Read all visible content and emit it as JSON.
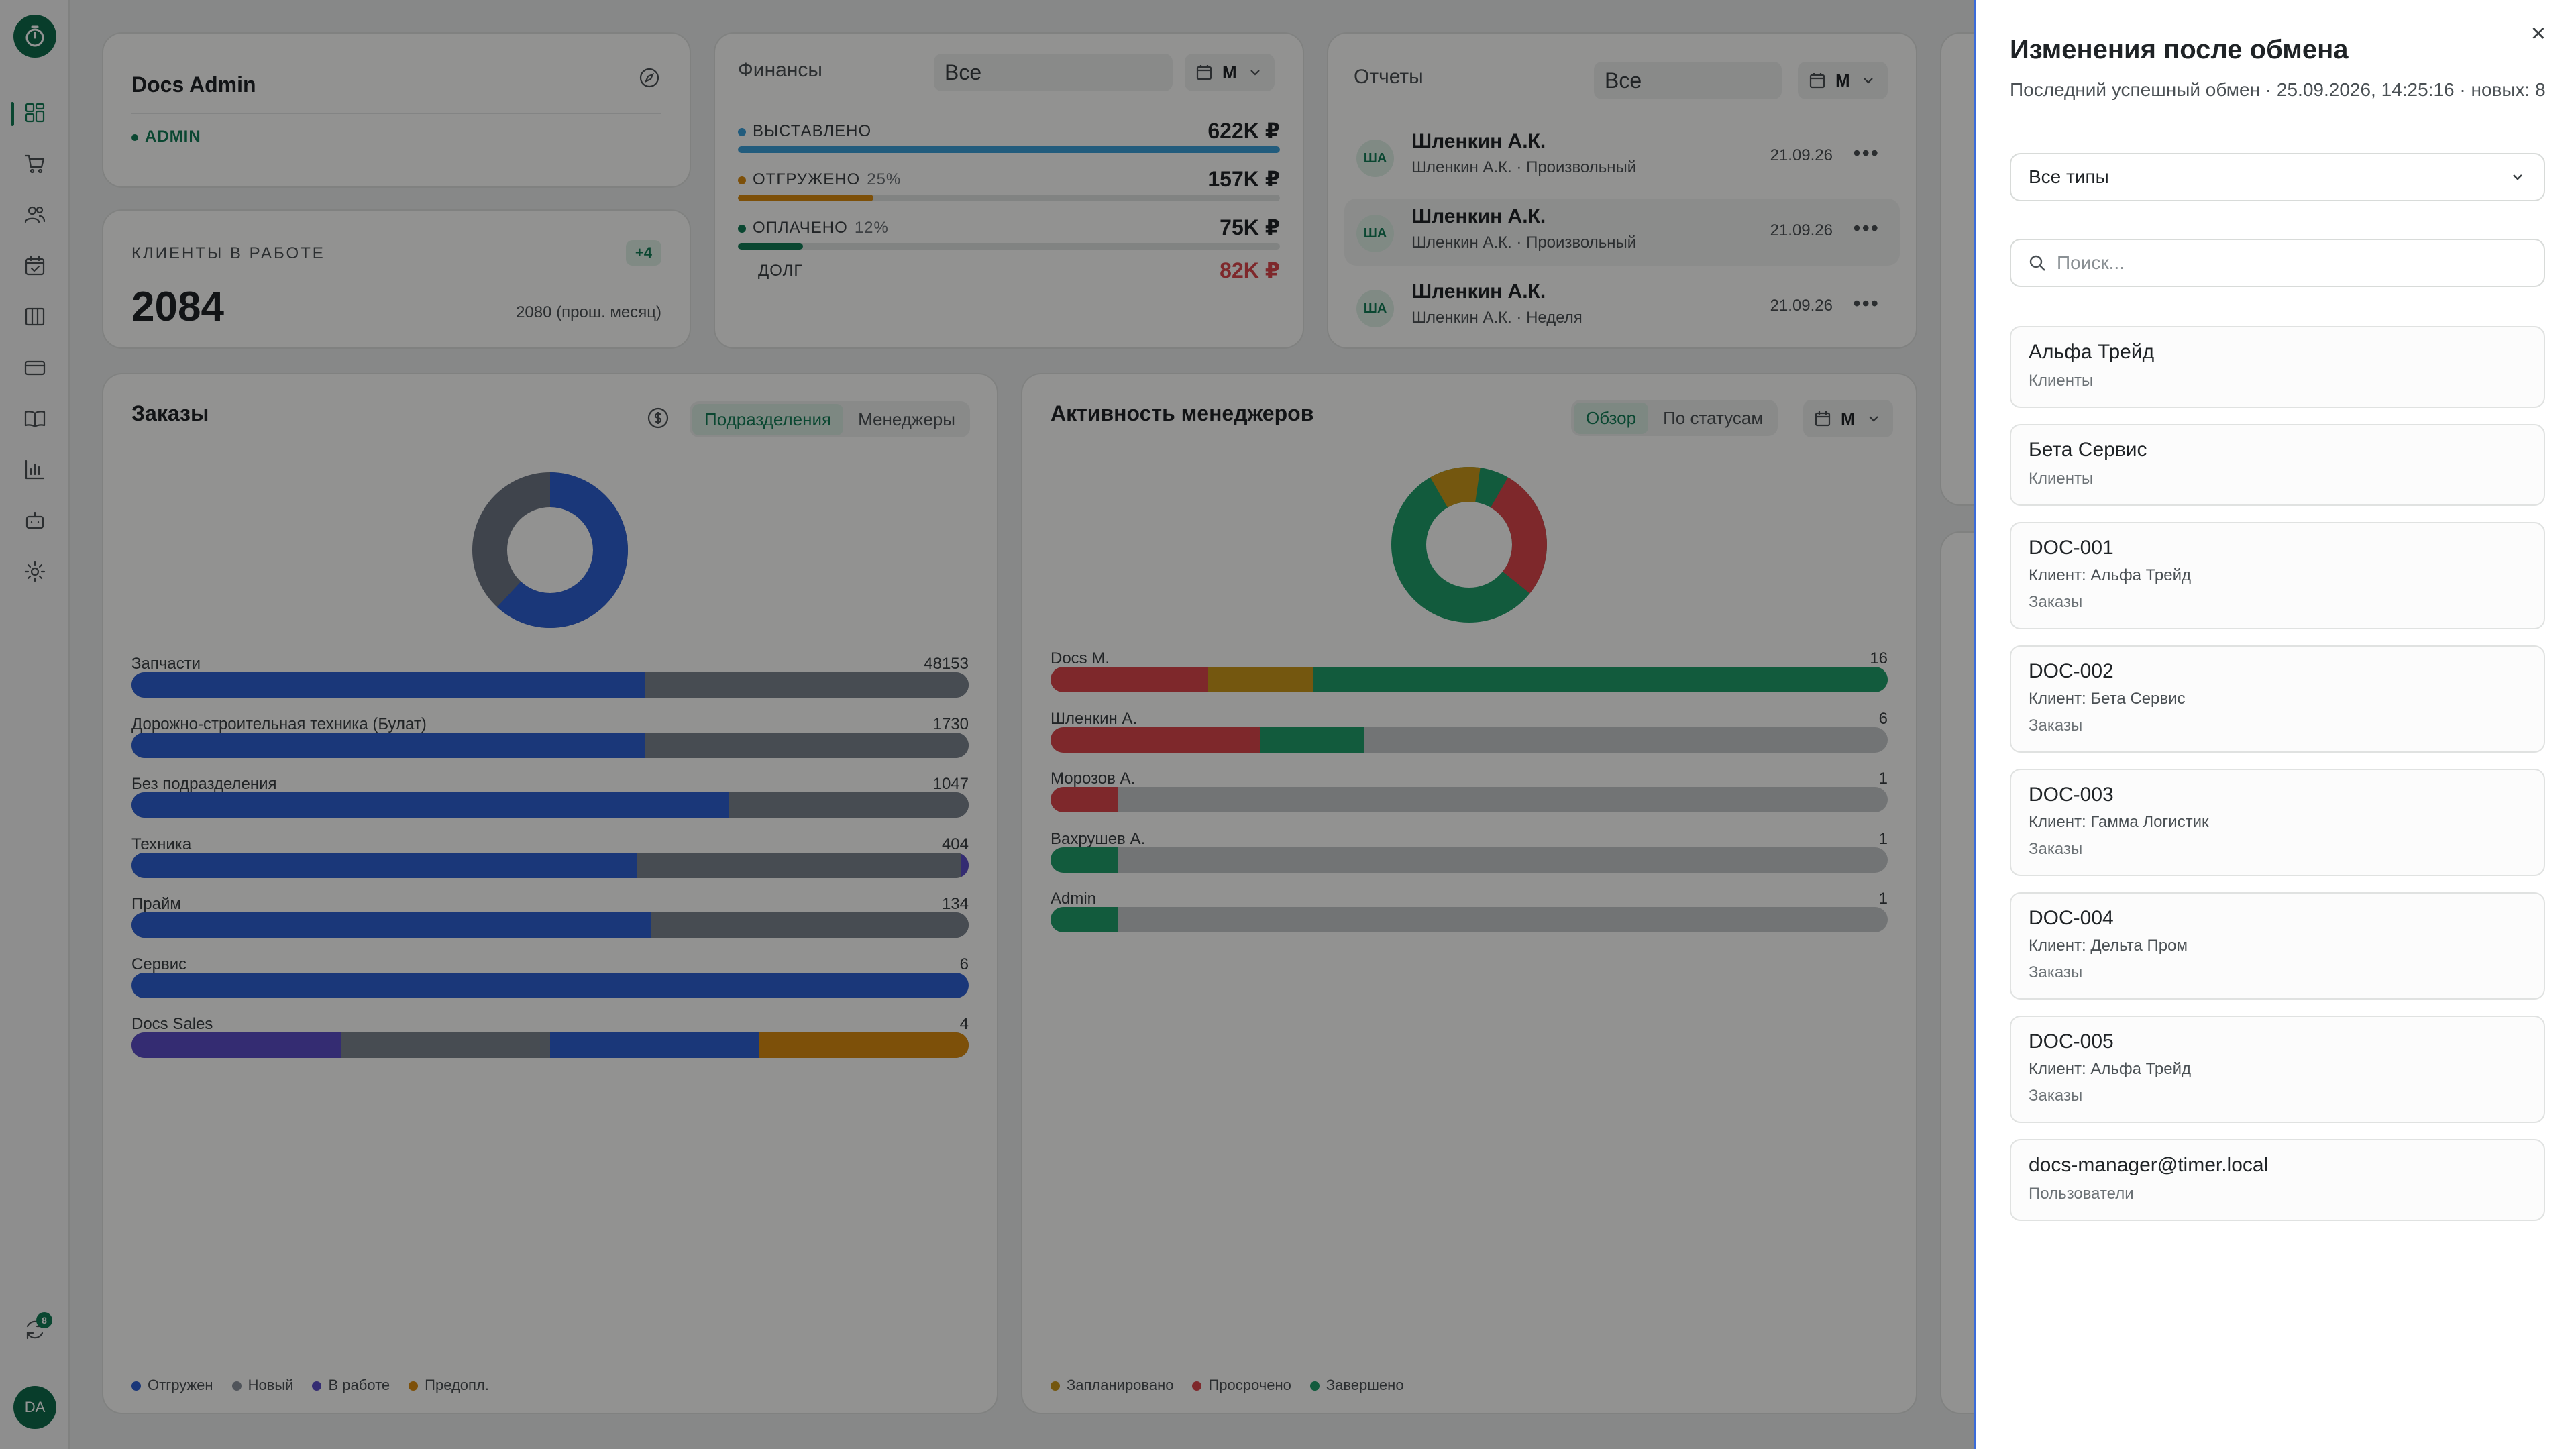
{
  "sidebar": {
    "nav": [
      "dashboard",
      "orders",
      "clients",
      "calendar",
      "boards",
      "payments",
      "knowledge",
      "analytics",
      "bots",
      "settings"
    ],
    "sync_badge": "8",
    "avatar": "DA"
  },
  "admin_card": {
    "title": "Docs Admin",
    "role": "ADMIN"
  },
  "clients_card": {
    "label": "КЛИЕНТЫ В РАБОТЕ",
    "badge": "+4",
    "value": "2084",
    "prev": "2080 (прош. месяц)"
  },
  "finance": {
    "title": "Финансы",
    "filter": "Все",
    "period": "М",
    "rows": [
      {
        "name": "ВЫСТАВЛЕНО",
        "pct": "",
        "value": "622K ₽",
        "fill": 1.0,
        "color": "#3b9fd8"
      },
      {
        "name": "ОТГРУЖЕНО",
        "pct": "25%",
        "value": "157K ₽",
        "fill": 0.25,
        "color": "#d88a10"
      },
      {
        "name": "ОПЛАЧЕНО",
        "pct": "12%",
        "value": "75K ₽",
        "fill": 0.12,
        "color": "#127a55"
      }
    ],
    "debt_label": "ДОЛГ",
    "debt_value": "82K ₽"
  },
  "reports": {
    "title": "Отчеты",
    "filter": "Все",
    "period": "М",
    "rows": [
      {
        "avatar": "ША",
        "name": "Шленкин А.К.",
        "sub": "Шленкин А.К. · Произвольный",
        "date": "21.09.26"
      },
      {
        "avatar": "ША",
        "name": "Шленкин А.К.",
        "sub": "Шленкин А.К. · Произвольный",
        "date": "21.09.26"
      },
      {
        "avatar": "ША",
        "name": "Шленкин А.К.",
        "sub": "Шленкин А.К. · Неделя",
        "date": "21.09.26"
      }
    ]
  },
  "orders": {
    "title": "Заказы",
    "tabs": [
      "Подразделения",
      "Менеджеры"
    ],
    "bars": [
      {
        "label": "Запчасти",
        "value": "48153",
        "segments": [
          0.613,
          0.387
        ]
      },
      {
        "label": "Дорожно-строительная техника (Булат)",
        "value": "1730",
        "segments": [
          0.613,
          0.387
        ]
      },
      {
        "label": "Без подразделения",
        "value": "1047",
        "segments": [
          0.713,
          0.287
        ]
      },
      {
        "label": "Техника",
        "value": "404",
        "segments": [
          0.604,
          0.386,
          0.01
        ]
      },
      {
        "label": "Прайм",
        "value": "134",
        "segments": [
          0.62,
          0.38
        ]
      },
      {
        "label": "Сервис",
        "value": "6",
        "segments": [
          1.0
        ]
      },
      {
        "label": "Docs Sales",
        "value": "4",
        "segments": [
          0.25,
          0.25,
          0.25,
          0.25
        ],
        "colors": [
          "#5a4cc4",
          "#7a838e",
          "#2d5fd0",
          "#d88a10"
        ]
      }
    ],
    "legend": [
      {
        "label": "Отгружен",
        "color": "#2d5fd0"
      },
      {
        "label": "Новый",
        "color": "#8a929c"
      },
      {
        "label": "В работе",
        "color": "#5a4cc4"
      },
      {
        "label": "Предопл.",
        "color": "#d88a10"
      }
    ]
  },
  "activity": {
    "title": "Активность менеджеров",
    "tabs": [
      "Обзор",
      "По статусам"
    ],
    "period": "М",
    "bars": [
      {
        "label": "Docs M.",
        "value": "16",
        "segments": [
          {
            "c": "#d9454b",
            "w": 0.188
          },
          {
            "c": "#c9961a",
            "w": 0.125
          },
          {
            "c": "#1f9d6a",
            "w": 0.687
          }
        ]
      },
      {
        "label": "Шленкин А.",
        "value": "6",
        "segments": [
          {
            "c": "#d9454b",
            "w": 0.25
          },
          {
            "c": "#1f9d6a",
            "w": 0.125
          }
        ]
      },
      {
        "label": "Морозов А.",
        "value": "1",
        "segments": [
          {
            "c": "#d9454b",
            "w": 0.08
          }
        ]
      },
      {
        "label": "Вахрушев А.",
        "value": "1",
        "segments": [
          {
            "c": "#1f9d6a",
            "w": 0.08
          }
        ]
      },
      {
        "label": "Admin",
        "value": "1",
        "segments": [
          {
            "c": "#1f9d6a",
            "w": 0.08
          }
        ]
      }
    ],
    "legend": [
      {
        "label": "Запланировано",
        "color": "#c9961a"
      },
      {
        "label": "Просрочено",
        "color": "#d9454b"
      },
      {
        "label": "Завершено",
        "color": "#1f9d6a"
      }
    ]
  },
  "drawer": {
    "title": "Изменения после обмена",
    "subtitle": "Последний успешный обмен · 25.09.2026, 14:25:16 · новых: 8",
    "type_filter": "Все типы",
    "search_placeholder": "Поиск...",
    "items": [
      {
        "title": "Альфа Трейд",
        "sub": "",
        "kind": "Клиенты"
      },
      {
        "title": "Бета Сервис",
        "sub": "",
        "kind": "Клиенты"
      },
      {
        "title": "DOC-001",
        "sub": "Клиент: Альфа Трейд",
        "kind": "Заказы"
      },
      {
        "title": "DOC-002",
        "sub": "Клиент: Бета Сервис",
        "kind": "Заказы"
      },
      {
        "title": "DOC-003",
        "sub": "Клиент: Гамма Логистик",
        "kind": "Заказы"
      },
      {
        "title": "DOC-004",
        "sub": "Клиент: Дельта Пром",
        "kind": "Заказы"
      },
      {
        "title": "DOC-005",
        "sub": "Клиент: Альфа Трейд",
        "kind": "Заказы"
      },
      {
        "title": "docs-manager@timer.local",
        "sub": "",
        "kind": "Пользователи"
      }
    ]
  }
}
